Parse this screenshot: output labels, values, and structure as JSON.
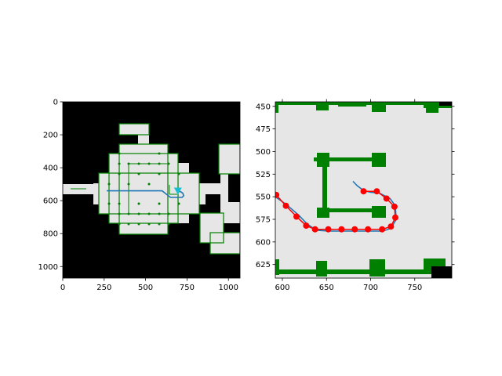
{
  "chart_data": [
    {
      "type": "scatter",
      "title": "",
      "xlabel": "",
      "ylabel": "",
      "xlim": [
        0,
        1070
      ],
      "ylim": [
        1070,
        0
      ],
      "xticks": [
        "0",
        "250",
        "500",
        "750",
        "1000"
      ],
      "yticks": [
        "0",
        "200",
        "400",
        "600",
        "800",
        "1000"
      ],
      "grid": false,
      "series": [
        {
          "role": "global-path",
          "color": "#1f77b4",
          "x": [
            265,
            600,
            650,
            680,
            700,
            720,
            730,
            725,
            710,
            700
          ],
          "y": [
            540,
            540,
            580,
            580,
            580,
            580,
            570,
            555,
            545,
            545
          ]
        }
      ],
      "robot": {
        "x": 695,
        "y": 540,
        "color": "#17becf"
      }
    },
    {
      "type": "line",
      "title": "",
      "xlabel": "",
      "ylabel": "",
      "xlim": [
        592,
        792
      ],
      "ylim": [
        640,
        445
      ],
      "xticks": [
        "600",
        "650",
        "700",
        "750"
      ],
      "yticks": [
        "450",
        "475",
        "500",
        "525",
        "550",
        "575",
        "600",
        "625"
      ],
      "grid": false,
      "series": [
        {
          "role": "smoothed-path",
          "color": "#1f77b4",
          "x": [
            592,
            605,
            618,
            628,
            638,
            652,
            667,
            683,
            698,
            714,
            723,
            729,
            728,
            722,
            710,
            700,
            692,
            685,
            680
          ],
          "y": [
            550,
            559,
            570,
            580,
            587,
            588,
            588,
            588,
            588,
            588,
            585,
            575,
            560,
            552,
            546,
            545,
            543,
            538,
            533
          ]
        },
        {
          "role": "waypoints",
          "color": "#ff0000",
          "x": [
            593,
            604,
            616,
            627,
            637,
            652,
            667,
            682,
            697,
            713,
            723,
            728,
            727,
            718,
            707,
            692
          ],
          "y": [
            548,
            560,
            572,
            582,
            586,
            586,
            586,
            586,
            586,
            586,
            583,
            573,
            561,
            552,
            544,
            544
          ]
        }
      ]
    }
  ]
}
